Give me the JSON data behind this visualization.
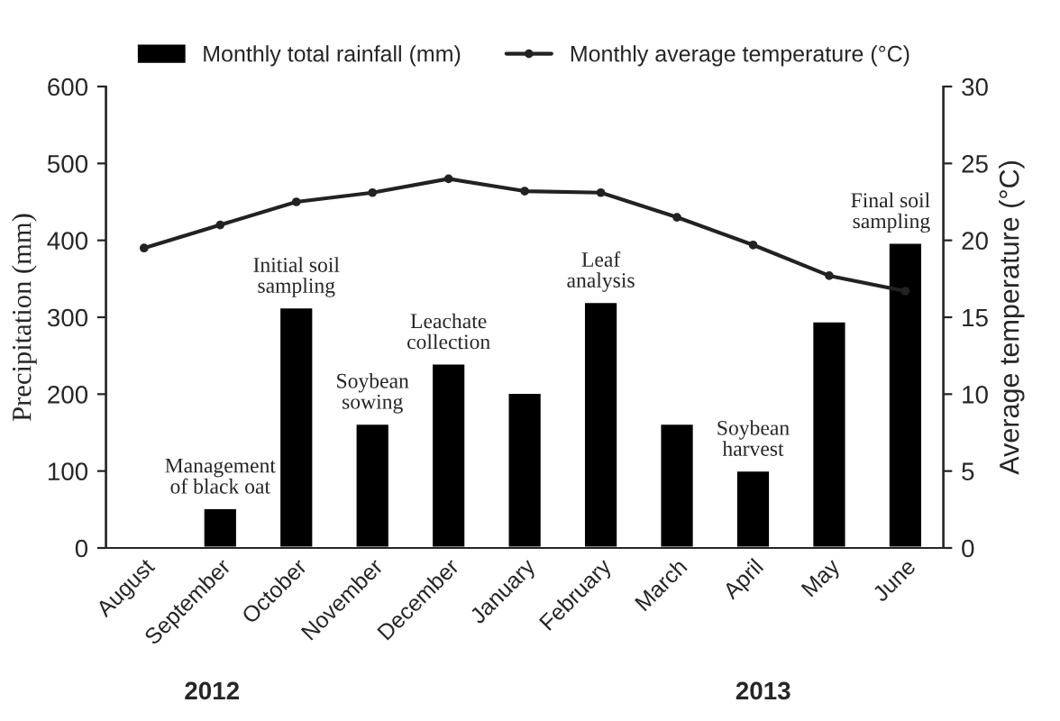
{
  "chart_data": {
    "type": "bar",
    "ylabel": "Precipitation (mm)",
    "y2label": "Average temperature (°C)",
    "categories": [
      "August",
      "September",
      "October",
      "November",
      "December",
      "January",
      "February",
      "March",
      "April",
      "May",
      "June"
    ],
    "series": [
      {
        "name": "Monthly total rainfall (mm)",
        "color": "#000000",
        "values": [
          2,
          52,
          313,
          162,
          240,
          202,
          320,
          162,
          101,
          295,
          397
        ]
      },
      {
        "name": "Monthly average temperature (°C)",
        "type": "line",
        "axis": "y2",
        "color": "#222222",
        "marker": "circle",
        "values": [
          19.5,
          21,
          22.5,
          23.1,
          24,
          23.2,
          23.1,
          21.5,
          19.7,
          17.7,
          16.7
        ]
      }
    ],
    "ylim": [
      0,
      600
    ],
    "yticks": [
      0,
      100,
      200,
      300,
      400,
      500,
      600
    ],
    "y2lim": [
      0,
      30
    ],
    "y2ticks": [
      0,
      5,
      10,
      15,
      20,
      25,
      30
    ],
    "annotations": [
      {
        "text": "Management\nof black oat",
        "x": "September",
        "y": 52
      },
      {
        "text": "Initial soil\nsampling",
        "x": "October",
        "y": 313
      },
      {
        "text": "Soybean\nsowing",
        "x": "November",
        "y": 162
      },
      {
        "text": "Leachate\ncollection",
        "x": "December",
        "y": 240
      },
      {
        "text": "Leaf\nanalysis",
        "x": "February",
        "y": 320
      },
      {
        "text": "Soybean\nharvest",
        "x": "April",
        "y": 101
      },
      {
        "text": "Final soil\nsampling",
        "x": "June",
        "y": 397
      },
      "2012",
      "2013"
    ],
    "legend": "top",
    "grid": false
  }
}
